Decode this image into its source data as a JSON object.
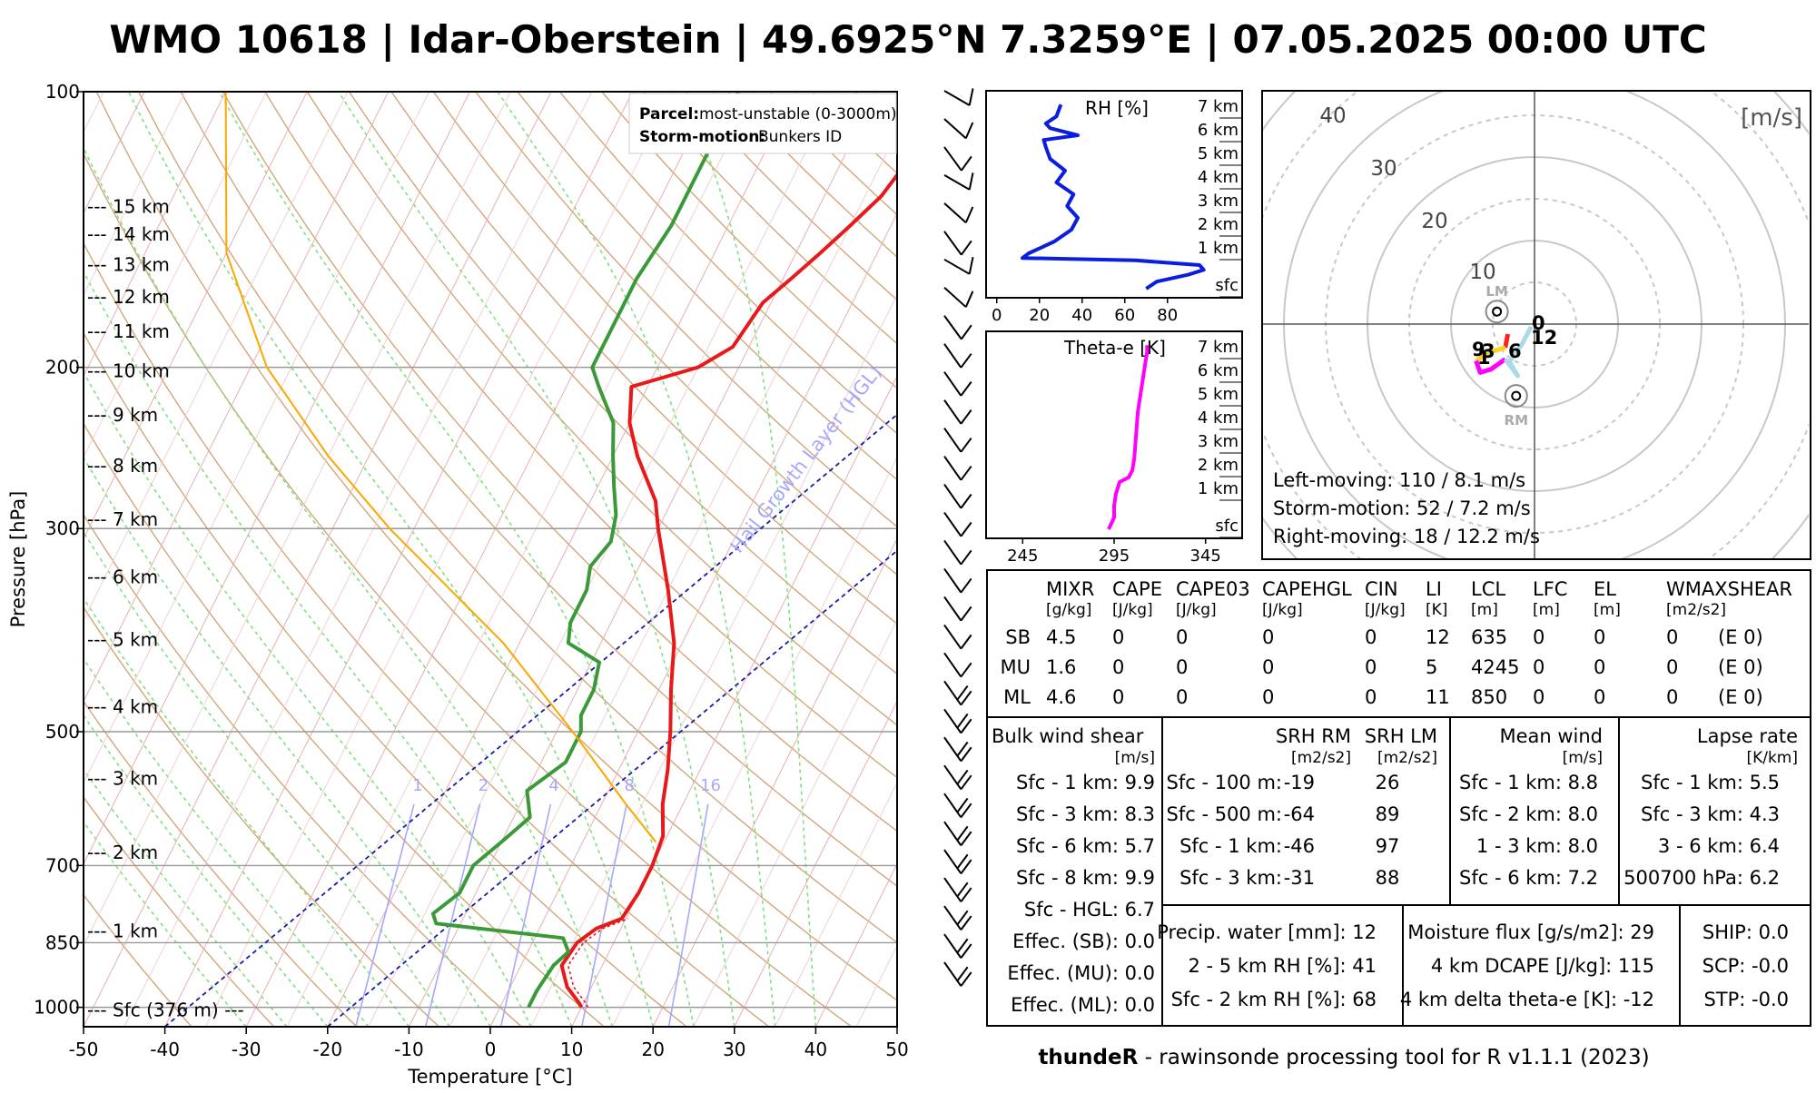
{
  "title": "WMO 10618 | Idar-Oberstein | 49.6925°N 7.3259°E | 07.05.2025 00:00 UTC",
  "footer": {
    "bold": "thundeR",
    "rest": " - rawinsonde processing tool for R v1.1.1 (2023)"
  },
  "skewt": {
    "xlabel": "Temperature [°C]",
    "ylabel": "Pressure [hPa]",
    "x_ticks": [
      -50,
      -40,
      -30,
      -20,
      -10,
      0,
      10,
      20,
      30,
      40,
      50
    ],
    "p_ticks": [
      100,
      200,
      300,
      500,
      700,
      850,
      1000
    ],
    "height_labels": [
      {
        "p": 150,
        "text": "--- 15 km"
      },
      {
        "p": 162,
        "text": "--- 14 km"
      },
      {
        "p": 175,
        "text": "--- 13 km"
      },
      {
        "p": 189,
        "text": "--- 12 km"
      },
      {
        "p": 204,
        "text": "--- 11 km"
      },
      {
        "p": 221,
        "text": "--- 10 km"
      },
      {
        "p": 240,
        "text": "--- 9 km"
      },
      {
        "p": 262,
        "text": "--- 8 km"
      },
      {
        "p": 285,
        "text": "--- 7 km"
      },
      {
        "p": 310,
        "text": "--- 6 km"
      },
      {
        "p": 337,
        "text": "--- 5 km"
      },
      {
        "p": 366,
        "text": "--- 4 km"
      },
      {
        "p": 397,
        "text": "--- 3 km"
      },
      {
        "p": 429,
        "text": "--- 2 km"
      },
      {
        "p": 463,
        "text": "--- 1 km"
      },
      {
        "p": 497,
        "text": "--- Sfc (376 m) ---"
      }
    ],
    "mixing_ratio_labels": [
      "1",
      "2",
      "4",
      "8",
      "16"
    ],
    "hgl_label": "Hail Growth Layer (HGL)",
    "parcel_label": "Parcel:",
    "parcel_value": "most-unstable (0-3000m)",
    "storm_label": "Storm-motion:",
    "storm_value": "Bunkers ID",
    "colors": {
      "temperature": "#e8191a",
      "dewpoint": "#3a9a3a",
      "parcel": "#ffa500",
      "hgl": "#1a1aa8"
    }
  },
  "chart_data": {
    "type": "line",
    "title": "WMO 10618 | Idar-Oberstein | 49.6925°N 7.3259°E | 07.05.2025 00:00 UTC",
    "xlabel": "Temperature [°C]",
    "ylabel": "Pressure [hPa]",
    "y_scale": "log",
    "xlim": [
      -50,
      50
    ],
    "ylim": [
      1000,
      100
    ],
    "series": [
      {
        "name": "Temperature",
        "points": [
          [
            1000,
            10
          ],
          [
            990,
            9.5
          ],
          [
            950,
            7
          ],
          [
            900,
            5
          ],
          [
            850,
            5.5
          ],
          [
            820,
            7
          ],
          [
            800,
            9.5
          ],
          [
            750,
            10
          ],
          [
            700,
            10
          ],
          [
            650,
            9.5
          ],
          [
            600,
            7.5
          ],
          [
            550,
            6
          ],
          [
            500,
            4
          ],
          [
            450,
            1.5
          ],
          [
            400,
            -1
          ],
          [
            350,
            -5
          ],
          [
            300,
            -10
          ],
          [
            280,
            -12
          ],
          [
            250,
            -17
          ],
          [
            230,
            -20
          ],
          [
            210,
            -22
          ],
          [
            200,
            -15
          ],
          [
            190,
            -12
          ],
          [
            170,
            -11
          ],
          [
            160,
            -9
          ],
          [
            150,
            -7
          ],
          [
            140,
            -5
          ],
          [
            130,
            -3
          ],
          [
            120,
            -2
          ],
          [
            110,
            0
          ],
          [
            100,
            2
          ]
        ]
      },
      {
        "name": "Dewpoint",
        "points": [
          [
            1000,
            3.5
          ],
          [
            960,
            3.5
          ],
          [
            900,
            4
          ],
          [
            870,
            5
          ],
          [
            840,
            3.5
          ],
          [
            810,
            -13
          ],
          [
            790,
            -14
          ],
          [
            750,
            -12
          ],
          [
            700,
            -12
          ],
          [
            660,
            -10
          ],
          [
            620,
            -8
          ],
          [
            580,
            -10
          ],
          [
            540,
            -7
          ],
          [
            500,
            -7
          ],
          [
            480,
            -8
          ],
          [
            450,
            -8
          ],
          [
            420,
            -9
          ],
          [
            400,
            -14
          ],
          [
            380,
            -15
          ],
          [
            350,
            -15
          ],
          [
            330,
            -16
          ],
          [
            310,
            -15
          ],
          [
            290,
            -16
          ],
          [
            270,
            -18
          ],
          [
            250,
            -20
          ],
          [
            230,
            -22
          ],
          [
            210,
            -26
          ],
          [
            200,
            -28
          ],
          [
            180,
            -28
          ],
          [
            160,
            -28
          ],
          [
            140,
            -27
          ],
          [
            120,
            -27
          ],
          [
            110,
            -27
          ],
          [
            100,
            -27
          ]
        ]
      },
      {
        "name": "Parcel",
        "points": [
          [
            660,
            9
          ],
          [
            600,
            3
          ],
          [
            500,
            -8
          ],
          [
            400,
            -22
          ],
          [
            300,
            -43
          ],
          [
            250,
            -55
          ],
          [
            200,
            -68
          ],
          [
            150,
            -80
          ],
          [
            100,
            -90
          ]
        ]
      },
      {
        "name": "RH [%]",
        "points": [
          [
            0,
            70
          ],
          [
            0.3,
            75
          ],
          [
            0.6,
            90
          ],
          [
            0.8,
            97
          ],
          [
            1.0,
            95
          ],
          [
            1.2,
            65
          ],
          [
            1.3,
            12
          ],
          [
            1.5,
            15
          ],
          [
            2.0,
            27
          ],
          [
            2.5,
            35
          ],
          [
            3.0,
            38
          ],
          [
            3.5,
            33
          ],
          [
            4.0,
            36
          ],
          [
            4.5,
            28
          ],
          [
            5.0,
            32
          ],
          [
            5.5,
            25
          ],
          [
            6.0,
            23
          ],
          [
            6.3,
            22
          ],
          [
            6.5,
            38
          ],
          [
            6.8,
            25
          ],
          [
            7.0,
            23
          ],
          [
            7.3,
            28
          ],
          [
            7.8,
            30
          ]
        ]
      },
      {
        "name": "Theta-e [K]",
        "points": [
          [
            0,
            292
          ],
          [
            0.5,
            295
          ],
          [
            1.0,
            295
          ],
          [
            1.5,
            296
          ],
          [
            2.0,
            298
          ],
          [
            2.2,
            303
          ],
          [
            2.5,
            305
          ],
          [
            3.0,
            306
          ],
          [
            4.0,
            307
          ],
          [
            5.0,
            308
          ],
          [
            6.0,
            310
          ],
          [
            6.5,
            311
          ],
          [
            7.0,
            312
          ],
          [
            7.5,
            313
          ],
          [
            7.8,
            313
          ]
        ]
      }
    ],
    "hodograph": {
      "unit": "[m/s]",
      "rings": [
        10,
        20,
        30,
        40
      ],
      "storm_motions": [
        {
          "label": "LM",
          "u": -4.5,
          "v": 1.5
        },
        {
          "label": "RM",
          "u": -2.2,
          "v": -8.6
        }
      ],
      "height_labels": [
        "0",
        "1",
        "3",
        "6",
        "9",
        "12"
      ]
    },
    "wind_barbs": 32
  },
  "rh_panel": {
    "title": "RH [%]",
    "x_ticks": [
      "0",
      "20",
      "40",
      "60",
      "80"
    ],
    "height_labels": [
      "7 km",
      "6 km",
      "5 km",
      "4 km",
      "3 km",
      "2 km",
      "1 km",
      "sfc"
    ]
  },
  "theta_panel": {
    "title": "Theta-e [K]",
    "x_ticks": [
      "245",
      "295",
      "345"
    ],
    "height_labels": [
      "7 km",
      "6 km",
      "5 km",
      "4 km",
      "3 km",
      "2 km",
      "1 km",
      "sfc"
    ]
  },
  "hodo_text": [
    "Left-moving: 110 / 8.1 m/s",
    "Storm-motion: 52 / 7.2 m/s",
    "Right-moving: 18 / 12.2 m/s"
  ],
  "params": {
    "header": [
      "MIXR",
      "CAPE",
      "CAPE03",
      "CAPEHGL",
      "CIN",
      "LI",
      "LCL",
      "LFC",
      "EL",
      "WMAXSHEAR"
    ],
    "units": [
      "[g/kg]",
      "[J/kg]",
      "[J/kg]",
      "[J/kg]",
      "[J/kg]",
      "[K]",
      "[m]",
      "[m]",
      "[m]",
      "[m2/s2]"
    ],
    "rows": [
      {
        "label": "SB",
        "vals": [
          "4.5",
          "0",
          "0",
          "0",
          "0",
          "12",
          "635",
          "0",
          "0",
          "0",
          "(E 0)"
        ]
      },
      {
        "label": "MU",
        "vals": [
          "1.6",
          "0",
          "0",
          "0",
          "0",
          "5",
          "4245",
          "0",
          "0",
          "0",
          "(E 0)"
        ]
      },
      {
        "label": "ML",
        "vals": [
          "4.6",
          "0",
          "0",
          "0",
          "0",
          "11",
          "850",
          "0",
          "0",
          "0",
          "(E 0)"
        ]
      }
    ]
  },
  "shear": {
    "title": "Bulk wind shear",
    "unit": "[m/s]",
    "rows": [
      "Sfc - 1 km: 9.9",
      "Sfc - 3 km: 8.3",
      "Sfc - 6 km: 5.7",
      "Sfc - 8 km: 9.9",
      "Sfc - HGL: 6.7",
      "Effec. (SB): 0.0",
      "Effec. (MU): 0.0",
      "Effec. (ML): 0.0"
    ]
  },
  "srh": {
    "title_rm": "SRH RM",
    "title_lm": "SRH LM",
    "unit_rm": "[m2/s2]",
    "unit_lm": "[m2/s2]",
    "rows": [
      {
        "label": "Sfc - 100 m:",
        "rm": "-19",
        "lm": "26"
      },
      {
        "label": "Sfc - 500 m:",
        "rm": "-64",
        "lm": "89"
      },
      {
        "label": "Sfc - 1 km:",
        "rm": "-46",
        "lm": "97"
      },
      {
        "label": "Sfc - 3 km:",
        "rm": "-31",
        "lm": "88"
      }
    ]
  },
  "mean_wind": {
    "title": "Mean wind",
    "unit": "[m/s]",
    "rows": [
      "Sfc - 1 km: 8.8",
      "Sfc - 2 km: 8.0",
      "1 - 3 km: 8.0",
      "Sfc - 6 km: 7.2"
    ]
  },
  "lapse": {
    "title": "Lapse rate",
    "unit": "[K/km]",
    "rows": [
      "Sfc - 1 km: 5.5",
      "Sfc - 3 km: 4.3",
      "3 - 6 km: 6.4",
      "500700 hPa: 6.2"
    ]
  },
  "misc1": [
    "Precip. water [mm]: 12",
    "2 - 5 km RH [%]: 41",
    "Sfc - 2 km RH [%]: 68"
  ],
  "misc2": [
    "Moisture flux [g/s/m2]: 29",
    "4 km DCAPE [J/kg]: 115",
    "4 km delta theta-e [K]: -12"
  ],
  "misc3": [
    "SHIP: 0.0",
    "SCP: -0.0",
    "STP: -0.0"
  ]
}
